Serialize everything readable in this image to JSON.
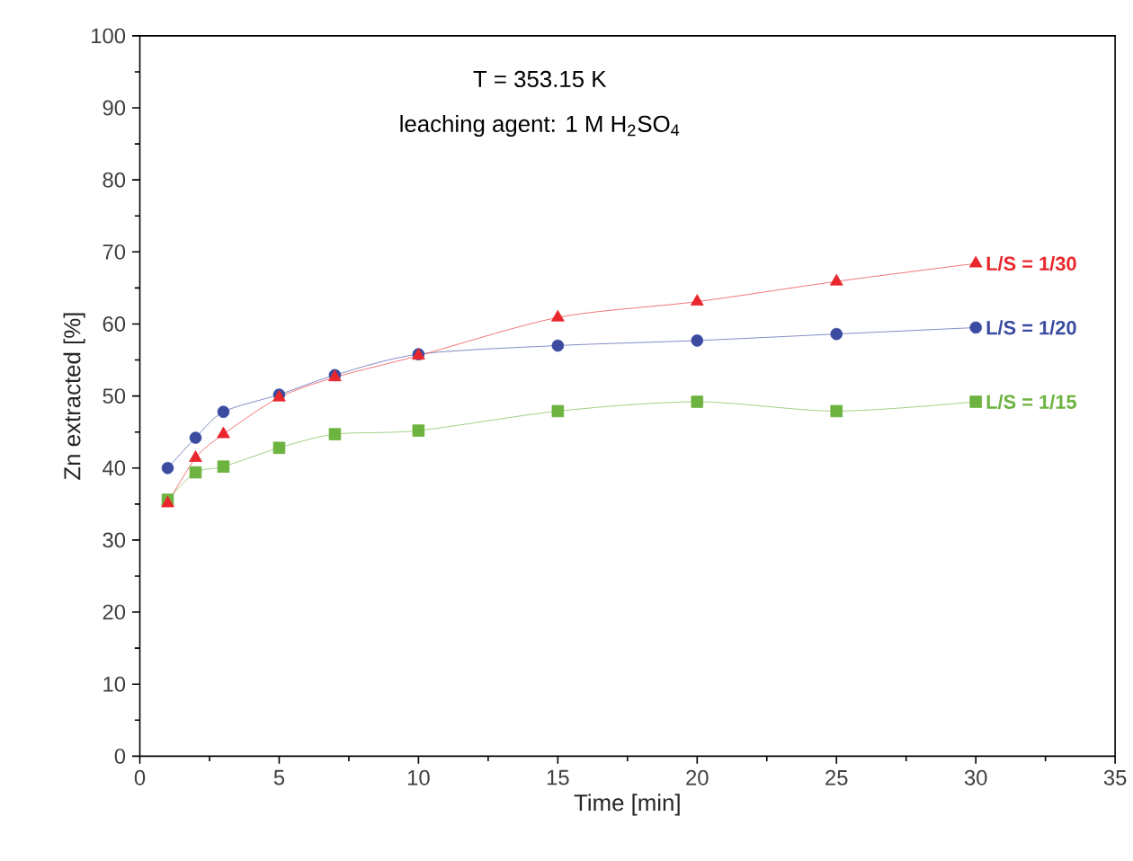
{
  "chart_data": {
    "type": "line",
    "xlabel": "Time [min]",
    "ylabel": "Zn extracted [%]",
    "annotations": [
      "T = 353.15 K",
      "leaching agent: 1 M H$_{2}$SO$_{4}$"
    ],
    "x": [
      1,
      2,
      3,
      5,
      7,
      10,
      15,
      20,
      25,
      30
    ],
    "series": [
      {
        "name": "L/S = 1/30",
        "color": "#e8262b",
        "marker": "triangle",
        "values": [
          35.1,
          41.4,
          44.7,
          49.8,
          52.6,
          55.6,
          60.9,
          63.1,
          65.9,
          68.4
        ]
      },
      {
        "name": "L/S = 1/20",
        "color": "#3a4ba0",
        "marker": "circle",
        "values": [
          40.0,
          44.2,
          47.8,
          50.2,
          52.9,
          55.8,
          57.0,
          57.7,
          58.6,
          59.5
        ]
      },
      {
        "name": "L/S = 1/15",
        "color": "#6cb33f",
        "marker": "square",
        "values": [
          35.6,
          39.4,
          40.2,
          42.8,
          44.7,
          45.2,
          47.9,
          49.2,
          47.9,
          49.2
        ]
      }
    ],
    "xlim": [
      0,
      35
    ],
    "xticks": [
      0,
      5,
      10,
      15,
      20,
      25,
      30,
      35
    ],
    "ylim": [
      0,
      100
    ],
    "yticks": [
      0,
      10,
      20,
      30,
      40,
      50,
      60,
      70,
      80,
      90,
      100
    ],
    "grid": false,
    "legend": false,
    "line_style": "solid"
  }
}
